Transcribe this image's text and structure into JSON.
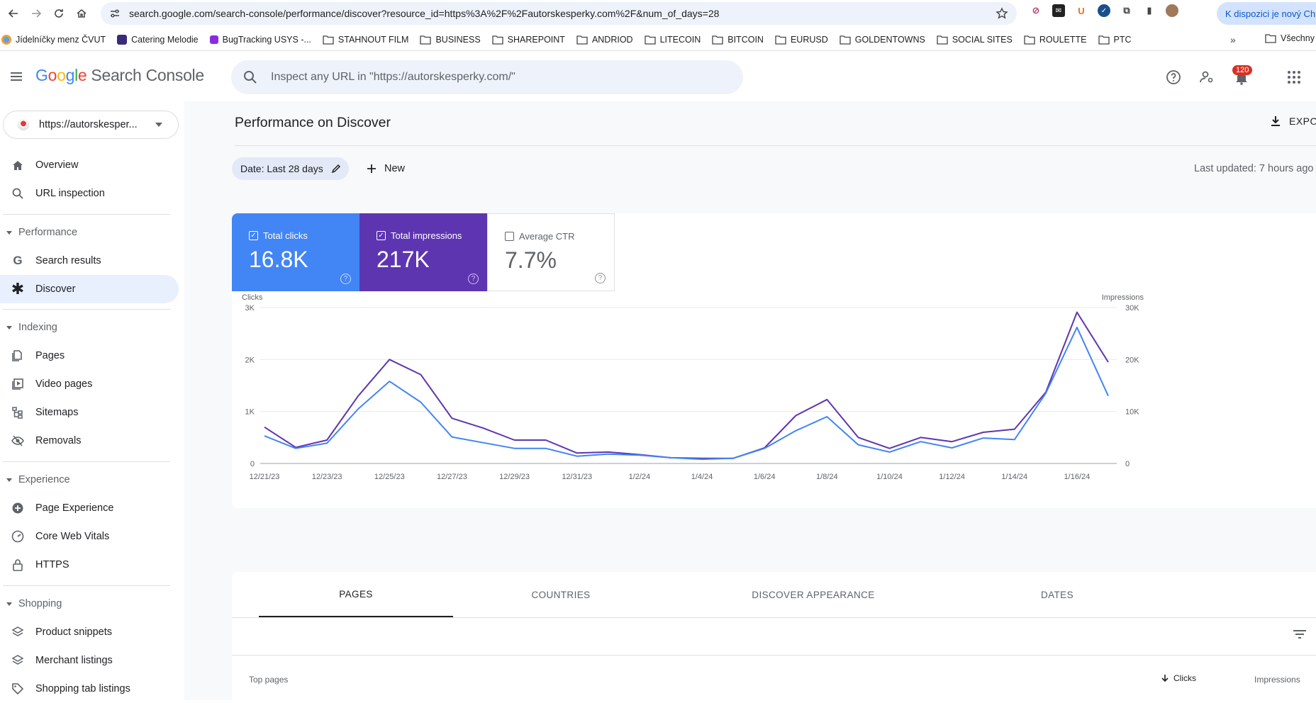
{
  "browser": {
    "url": "search.google.com/search-console/performance/discover?resource_id=https%3A%2F%2Fautorskesperky.com%2F&num_of_days=28",
    "update_label": "K dispozici je nový Chro",
    "bookmarks": [
      "Jídelníčky menz ČVUT",
      "Catering Melodie",
      "BugTracking USYS -...",
      "STAHNOUT FILM",
      "BUSINESS",
      "SHAREPOINT",
      "ANDRIOD",
      "LITECOIN",
      "BITCOIN",
      "EURUSD",
      "GOLDENTOWNS",
      "SOCIAL SITES",
      "ROULETTE",
      "PTC"
    ],
    "bookmarks_more": "»",
    "bookmarks_right": "Všechny z"
  },
  "header": {
    "logo": {
      "G": "G",
      "o1": "o",
      "o2": "o",
      "g": "g",
      "l": "l",
      "e": "e",
      "product": "Search Console"
    },
    "search_placeholder": "Inspect any URL in \"https://autorskesperky.com/\"",
    "notification_count": "120"
  },
  "sidebar": {
    "property": "https://autorskesper...",
    "items": {
      "overview": "Overview",
      "url_inspection": "URL inspection",
      "performance": "Performance",
      "search_results": "Search results",
      "discover": "Discover",
      "indexing": "Indexing",
      "pages": "Pages",
      "video_pages": "Video pages",
      "sitemaps": "Sitemaps",
      "removals": "Removals",
      "experience": "Experience",
      "page_experience": "Page Experience",
      "core_web_vitals": "Core Web Vitals",
      "https": "HTTPS",
      "shopping": "Shopping",
      "product_snippets": "Product snippets",
      "merchant_listings": "Merchant listings",
      "shopping_tab_listings": "Shopping tab listings"
    }
  },
  "main": {
    "title": "Performance on Discover",
    "export_label": "EXPO",
    "date_chip": "Date: Last 28 days",
    "new_label": "New",
    "last_updated": "Last updated: 7 hours ago",
    "metrics": {
      "clicks": {
        "label": "Total clicks",
        "value": "16.8K",
        "checked": true
      },
      "impressions": {
        "label": "Total impressions",
        "value": "217K",
        "checked": true
      },
      "ctr": {
        "label": "Average CTR",
        "value": "7.7%",
        "checked": false
      }
    },
    "tabs": [
      "PAGES",
      "COUNTRIES",
      "DISCOVER APPEARANCE",
      "DATES"
    ],
    "table": {
      "col_pages": "Top pages",
      "col_clicks": "Clicks",
      "col_impressions": "Impressions"
    }
  },
  "chart_data": {
    "type": "line",
    "x": [
      "12/21/23",
      "12/22/23",
      "12/23/23",
      "12/24/23",
      "12/25/23",
      "12/26/23",
      "12/27/23",
      "12/28/23",
      "12/29/23",
      "12/30/23",
      "12/31/23",
      "1/1/24",
      "1/2/24",
      "1/3/24",
      "1/4/24",
      "1/5/24",
      "1/6/24",
      "1/7/24",
      "1/8/24",
      "1/9/24",
      "1/10/24",
      "1/11/24",
      "1/12/24",
      "1/13/24",
      "1/14/24",
      "1/15/24",
      "1/16/24",
      "1/17/24"
    ],
    "x_tick_labels": [
      "12/21/23",
      "12/23/23",
      "12/25/23",
      "12/27/23",
      "12/29/23",
      "12/31/23",
      "1/2/24",
      "1/4/24",
      "1/6/24",
      "1/8/24",
      "1/10/24",
      "1/12/24",
      "1/14/24",
      "1/16/24"
    ],
    "series": [
      {
        "name": "Clicks",
        "axis": "left",
        "color": "#4285f4",
        "values": [
          530,
          290,
          390,
          1050,
          1580,
          1180,
          510,
          400,
          290,
          290,
          140,
          180,
          160,
          110,
          80,
          100,
          290,
          630,
          900,
          360,
          220,
          420,
          300,
          490,
          460,
          1350,
          2620,
          1300
        ]
      },
      {
        "name": "Impressions",
        "axis": "right",
        "color": "#5e35b1",
        "values": [
          7000,
          3100,
          4500,
          13000,
          20000,
          17100,
          8700,
          6800,
          4500,
          4500,
          2000,
          2200,
          1700,
          1100,
          1000,
          1000,
          3000,
          9200,
          12300,
          5000,
          2900,
          5000,
          4200,
          6000,
          6600,
          13700,
          29100,
          19500
        ]
      }
    ],
    "ylabel_left": "Clicks",
    "ylabel_right": "Impressions",
    "ylim_left": [
      0,
      3000
    ],
    "ylim_right": [
      0,
      30000
    ],
    "y_ticks_left": [
      "0",
      "1K",
      "2K",
      "3K"
    ],
    "y_ticks_right": [
      "0",
      "10K",
      "20K",
      "30K"
    ],
    "grid": true
  }
}
